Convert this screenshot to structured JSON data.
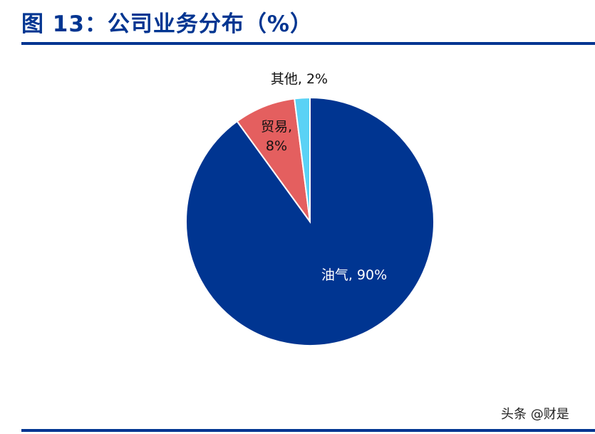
{
  "header": {
    "title": "图 13：公司业务分布（%）"
  },
  "footer": {
    "watermark": "头条 @财是"
  },
  "colors": {
    "title": "#003591",
    "rule": "#003591"
  },
  "chart_data": {
    "type": "pie",
    "title": "图 13：公司业务分布（%）",
    "start": "12 o'clock, clockwise",
    "slices": [
      {
        "label": "油气",
        "value": 90,
        "text": "油气, 90%",
        "color": "#003591",
        "label_color": "#ffffff"
      },
      {
        "label": "贸易",
        "value": 8,
        "text": "贸易,\n8%",
        "color": "#E45F5F",
        "label_color": "#111111"
      },
      {
        "label": "其他",
        "value": 2,
        "text": "其他, 2%",
        "color": "#5AD2F5",
        "label_color": "#111111"
      }
    ]
  }
}
